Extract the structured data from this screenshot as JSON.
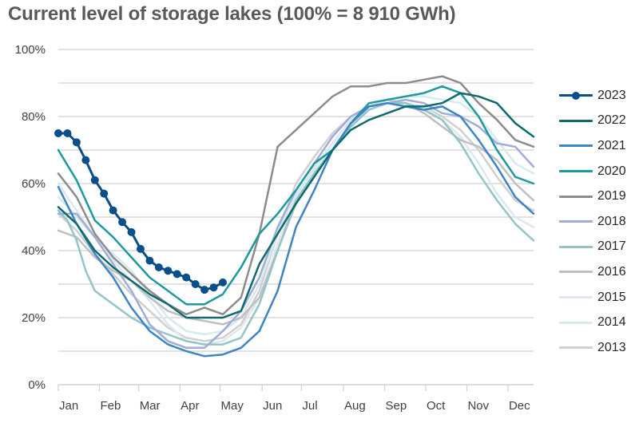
{
  "chart_data": {
    "type": "line",
    "title": "Current level of storage lakes (100% = 8 910 GWh)",
    "xlabel": "",
    "ylabel": "",
    "x_unit": "week of year",
    "xlim": [
      0,
      52
    ],
    "ylim": [
      0,
      100
    ],
    "y_ticks": [
      0,
      20,
      40,
      60,
      80,
      100
    ],
    "y_tick_labels": [
      "0%",
      "20%",
      "40%",
      "60%",
      "80%",
      "100%"
    ],
    "x_ticks": [
      0,
      4.5,
      8.8,
      13.3,
      17.7,
      22.3,
      26.6,
      31.2,
      35.7,
      40.2,
      44.7,
      49.2
    ],
    "x_tick_labels": [
      "Jan",
      "Feb",
      "Mar",
      "Apr",
      "May",
      "Jun",
      "Jul",
      "Aug",
      "Sep",
      "Oct",
      "Nov",
      "Dec"
    ],
    "grid": true,
    "legend_position": "right",
    "series": [
      {
        "name": "2013",
        "color": "#d0d0d0",
        "width": 2.5,
        "markers": false,
        "x": [
          0,
          2,
          4,
          6,
          8,
          10,
          12,
          14,
          16,
          18,
          20,
          22,
          24,
          26,
          28,
          30,
          32,
          34,
          36,
          38,
          40,
          42,
          44,
          46,
          48,
          50,
          52
        ],
        "y": [
          51,
          46,
          39,
          33,
          27,
          22,
          17,
          14,
          13,
          14,
          18,
          28,
          45,
          60,
          68,
          75,
          80,
          83,
          85,
          84,
          83,
          80,
          76,
          70,
          62,
          55,
          52
        ]
      },
      {
        "name": "2014",
        "color": "#d6eceb",
        "width": 2.5,
        "markers": false,
        "x": [
          0,
          2,
          4,
          6,
          8,
          10,
          12,
          14,
          16,
          18,
          20,
          22,
          24,
          26,
          28,
          30,
          32,
          34,
          36,
          38,
          40,
          42,
          44,
          46,
          48,
          50,
          52
        ],
        "y": [
          56,
          50,
          44,
          39,
          34,
          27,
          20,
          16,
          15,
          16,
          20,
          30,
          45,
          57,
          64,
          72,
          79,
          83,
          85,
          86,
          86,
          85,
          84,
          80,
          73,
          66,
          63
        ]
      },
      {
        "name": "2015",
        "color": "#dfe6f2",
        "width": 2.5,
        "markers": false,
        "x": [
          0,
          2,
          4,
          6,
          8,
          10,
          12,
          14,
          16,
          18,
          20,
          22,
          24,
          26,
          28,
          30,
          32,
          34,
          36,
          38,
          40,
          42,
          44,
          46,
          48,
          50,
          52
        ],
        "y": [
          60,
          52,
          44,
          37,
          31,
          25,
          18,
          13,
          12,
          13,
          17,
          26,
          42,
          56,
          65,
          72,
          79,
          83,
          84,
          84,
          83,
          79,
          74,
          66,
          57,
          50,
          47
        ]
      },
      {
        "name": "2016",
        "color": "#bfbfbf",
        "width": 2.5,
        "markers": false,
        "x": [
          0,
          2,
          4,
          6,
          8,
          10,
          12,
          14,
          16,
          18,
          20,
          22,
          24,
          26,
          28,
          30,
          32,
          34,
          36,
          38,
          40,
          42,
          44,
          46,
          48,
          50,
          52
        ],
        "y": [
          46,
          44,
          38,
          34,
          31,
          26,
          22,
          20,
          19,
          18,
          20,
          26,
          40,
          54,
          62,
          70,
          78,
          83,
          84,
          84,
          81,
          77,
          73,
          71,
          67,
          60,
          55
        ]
      },
      {
        "name": "2017",
        "color": "#92c5c6",
        "width": 2.5,
        "markers": false,
        "x": [
          0,
          1,
          2,
          3,
          4,
          6,
          8,
          10,
          12,
          14,
          16,
          18,
          20,
          22,
          24,
          26,
          28,
          30,
          32,
          34,
          36,
          38,
          40,
          42,
          44,
          46,
          48,
          50,
          52
        ],
        "y": [
          52,
          49,
          43,
          34,
          28,
          24,
          20,
          17,
          15,
          13,
          12,
          12,
          14,
          24,
          40,
          55,
          63,
          70,
          77,
          82,
          84,
          84,
          82,
          79,
          72,
          63,
          55,
          48,
          43
        ]
      },
      {
        "name": "2018",
        "color": "#9eaed6",
        "width": 2.5,
        "markers": false,
        "x": [
          0,
          2,
          4,
          6,
          8,
          10,
          12,
          14,
          16,
          18,
          20,
          22,
          24,
          26,
          28,
          30,
          32,
          34,
          36,
          38,
          40,
          42,
          44,
          46,
          48,
          50,
          52
        ],
        "y": [
          51,
          51,
          44,
          36,
          28,
          18,
          13,
          11,
          11,
          16,
          22,
          32,
          47,
          58,
          66,
          74,
          80,
          83,
          84,
          85,
          84,
          81,
          80,
          77,
          72,
          71,
          65
        ]
      },
      {
        "name": "2019",
        "color": "#8c8c8c",
        "width": 2.5,
        "markers": false,
        "x": [
          0,
          2,
          4,
          6,
          8,
          10,
          12,
          14,
          16,
          18,
          20,
          22,
          24,
          26,
          28,
          30,
          32,
          34,
          36,
          38,
          40,
          42,
          44,
          46,
          48,
          50,
          52
        ],
        "y": [
          63,
          56,
          45,
          38,
          33,
          28,
          24,
          21,
          23,
          21,
          26,
          45,
          71,
          76,
          81,
          86,
          89,
          89,
          90,
          90,
          91,
          92,
          90,
          84,
          79,
          73,
          71
        ]
      },
      {
        "name": "2020",
        "color": "#1c9aa0",
        "width": 2.5,
        "markers": false,
        "x": [
          0,
          2,
          4,
          6,
          8,
          10,
          12,
          14,
          16,
          18,
          20,
          22,
          24,
          26,
          28,
          30,
          32,
          34,
          36,
          38,
          40,
          42,
          44,
          46,
          48,
          50,
          52
        ],
        "y": [
          70,
          61,
          49,
          44,
          38,
          32,
          28,
          24,
          24,
          27,
          35,
          45,
          51,
          58,
          66,
          70,
          78,
          84,
          85,
          86,
          87,
          89,
          87,
          80,
          70,
          62,
          60
        ]
      },
      {
        "name": "2021",
        "color": "#3d85c6",
        "width": 2.5,
        "markers": false,
        "x": [
          0,
          2,
          4,
          6,
          8,
          10,
          12,
          14,
          16,
          18,
          20,
          22,
          24,
          26,
          28,
          30,
          32,
          34,
          36,
          38,
          40,
          42,
          44,
          46,
          48,
          50,
          52
        ],
        "y": [
          59,
          48,
          39,
          32,
          23,
          16,
          12,
          10,
          8.5,
          9,
          11,
          16,
          28,
          47,
          58,
          70,
          78,
          83,
          84,
          83,
          82,
          83,
          80,
          73,
          65,
          56,
          51
        ]
      },
      {
        "name": "2022",
        "color": "#0e6a6e",
        "width": 2.5,
        "markers": false,
        "x": [
          0,
          2,
          4,
          6,
          8,
          10,
          12,
          14,
          16,
          18,
          20,
          22,
          24,
          26,
          28,
          30,
          32,
          34,
          36,
          38,
          40,
          42,
          44,
          46,
          48,
          50,
          52
        ],
        "y": [
          53,
          48,
          40,
          35,
          31,
          27,
          24,
          20,
          20,
          20,
          22,
          36,
          45,
          54,
          62,
          70,
          76,
          79,
          81,
          83,
          83,
          84,
          87,
          86,
          84,
          78,
          74
        ]
      },
      {
        "name": "2023",
        "color": "#0b4f8a",
        "width": 3,
        "markers": true,
        "x": [
          0,
          1,
          2,
          3,
          4,
          5,
          6,
          7,
          8,
          9,
          10,
          11,
          12,
          13,
          14,
          15,
          16,
          17,
          18
        ],
        "y": [
          75,
          75,
          72.3,
          67,
          61,
          57,
          52,
          48.5,
          45.5,
          40.5,
          37,
          35,
          34,
          33,
          32,
          30,
          28.3,
          29,
          30.5
        ]
      }
    ]
  }
}
